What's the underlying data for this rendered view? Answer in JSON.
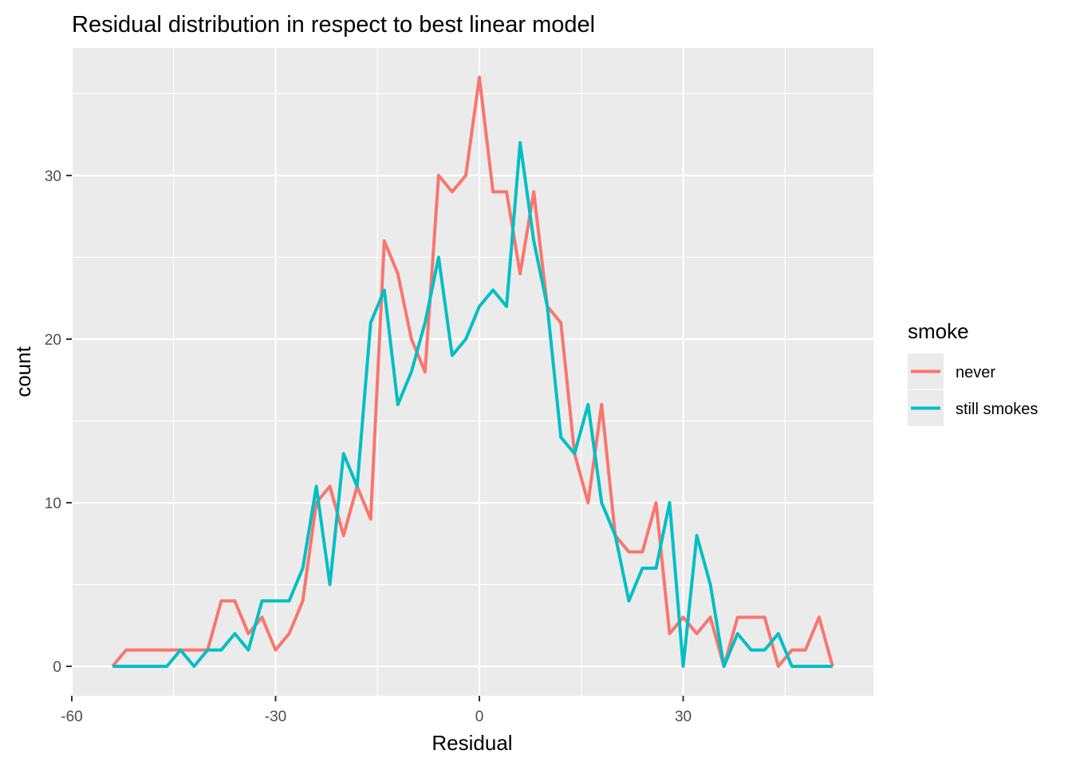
{
  "chart_data": {
    "type": "line",
    "title": "Residual distribution in respect to best linear model",
    "xlabel": "Residual",
    "ylabel": "count",
    "xlim": [
      -60,
      58
    ],
    "ylim": [
      -1.8,
      37.8
    ],
    "x_ticks": [
      -60,
      -30,
      0,
      30
    ],
    "x_tick_labels": [
      "-60",
      "-30",
      "0",
      "30"
    ],
    "y_ticks": [
      0,
      10,
      20,
      30
    ],
    "y_tick_labels": [
      "0",
      "10",
      "20",
      "30"
    ],
    "grid": true,
    "legend": {
      "title": "smoke",
      "position": "right"
    },
    "x": [
      -54,
      -52,
      -50,
      -48,
      -46,
      -44,
      -42,
      -40,
      -38,
      -36,
      -34,
      -32,
      -30,
      -28,
      -26,
      -24,
      -22,
      -20,
      -18,
      -16,
      -14,
      -12,
      -10,
      -8,
      -6,
      -4,
      -2,
      0,
      2,
      4,
      6,
      8,
      10,
      12,
      14,
      16,
      18,
      20,
      22,
      24,
      26,
      28,
      30,
      32,
      34,
      36,
      38,
      40,
      42,
      44,
      46,
      48,
      50,
      52
    ],
    "series": [
      {
        "name": "never",
        "color": "#F8766D",
        "values": [
          0,
          1,
          1,
          1,
          1,
          1,
          1,
          1,
          4,
          4,
          2,
          3,
          1,
          2,
          4,
          10,
          11,
          8,
          11,
          9,
          26,
          24,
          20,
          18,
          30,
          29,
          30,
          36,
          29,
          29,
          24,
          29,
          22,
          21,
          13,
          10,
          16,
          8,
          7,
          7,
          10,
          2,
          3,
          2,
          3,
          0,
          3,
          3,
          3,
          0,
          1,
          1,
          3,
          0
        ]
      },
      {
        "name": "still smokes",
        "color": "#00BFC4",
        "values": [
          0,
          0,
          0,
          0,
          0,
          1,
          0,
          1,
          1,
          2,
          1,
          4,
          4,
          4,
          6,
          11,
          5,
          13,
          11,
          21,
          23,
          16,
          18,
          21,
          25,
          19,
          20,
          22,
          23,
          22,
          32,
          26,
          22,
          14,
          13,
          16,
          10,
          8,
          4,
          6,
          6,
          10,
          0,
          8,
          5,
          0,
          2,
          1,
          1,
          2,
          0,
          0,
          0,
          0
        ]
      }
    ]
  }
}
